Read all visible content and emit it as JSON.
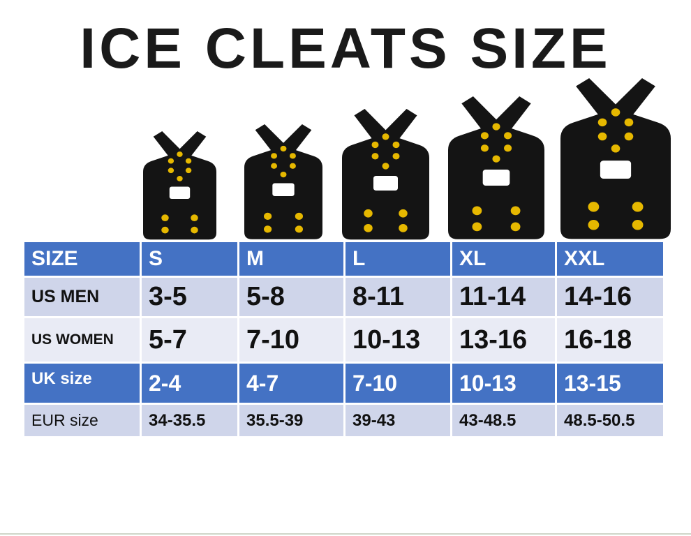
{
  "header": {
    "title": "ICE CLEATS SIZE"
  },
  "table": {
    "rows": [
      [
        "SIZE",
        "S",
        "M",
        "L",
        "XL",
        "XXL"
      ],
      [
        "US MEN",
        "3-5",
        "5-8",
        "8-11",
        "11-14",
        "14-16"
      ],
      [
        "US WOMEN",
        "5-7",
        "7-10",
        "10-13",
        "13-16",
        "16-18"
      ],
      [
        "UK size",
        "2-4",
        "4-7",
        "7-10",
        "10-13",
        "13-15"
      ],
      [
        "EUR size",
        "34-35.5",
        "35.5-39",
        "39-43",
        "43-48.5",
        "48.5-50.5"
      ]
    ]
  }
}
